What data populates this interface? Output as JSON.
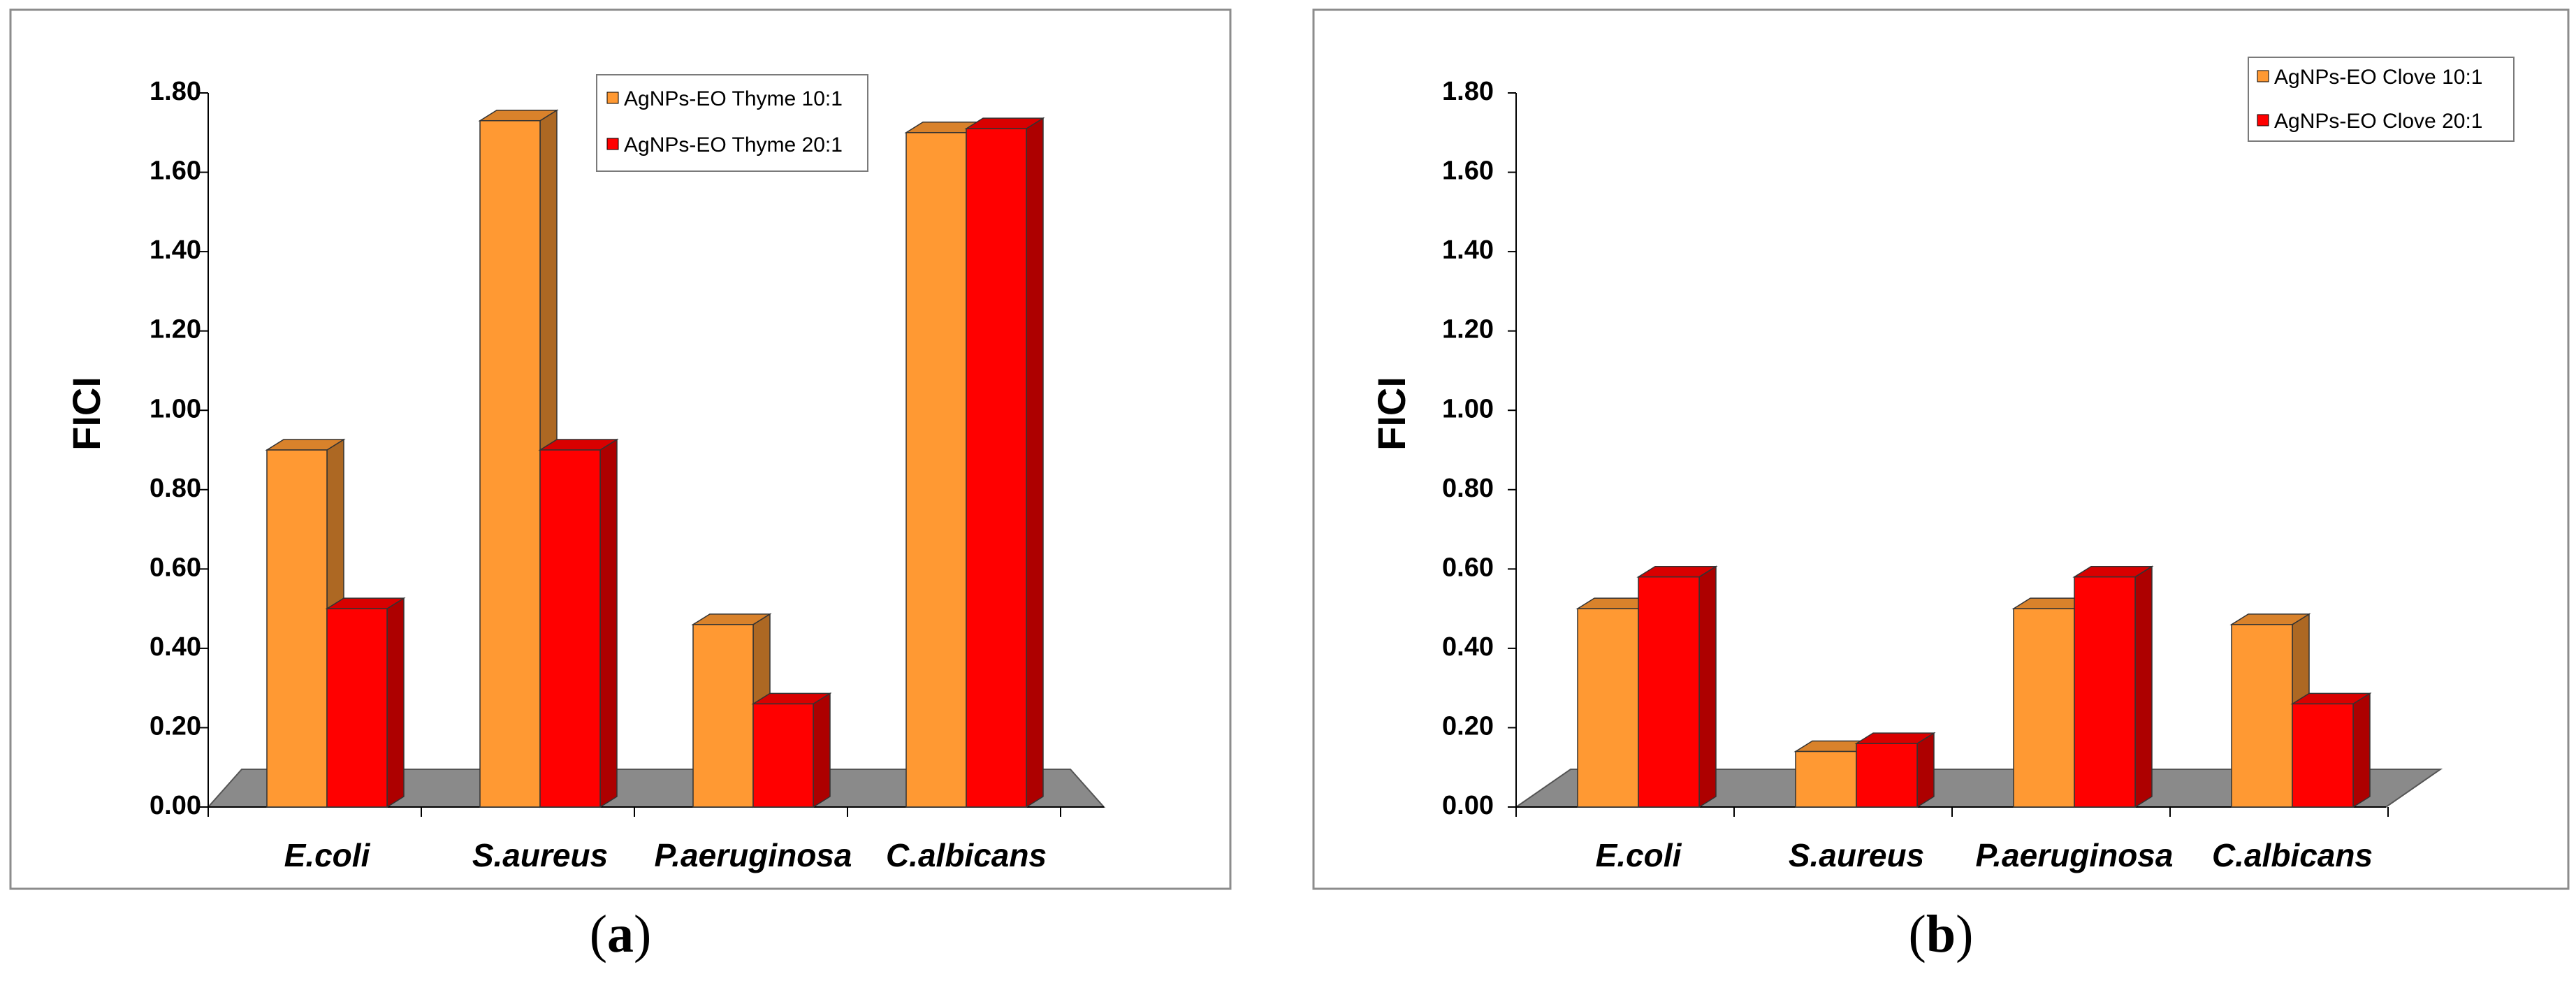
{
  "chart_data": [
    {
      "type": "bar",
      "panel": "a",
      "caption_letter": "a",
      "ylabel": "FICI",
      "ylim": [
        0,
        1.8
      ],
      "yticks": [
        "0.00",
        "0.20",
        "0.40",
        "0.60",
        "0.80",
        "1.00",
        "1.20",
        "1.40",
        "1.60",
        "1.80"
      ],
      "categories": [
        "E.coli",
        "S.aureus",
        "P.aeruginosa",
        "C.albicans"
      ],
      "series": [
        {
          "name": "AgNPs-EO Thyme 10:1",
          "color": "#FF9933",
          "values": [
            0.9,
            1.73,
            0.46,
            1.7
          ]
        },
        {
          "name": "AgNPs-EO Thyme 20:1",
          "color": "#FF0000",
          "values": [
            0.5,
            0.9,
            0.26,
            1.71
          ]
        }
      ],
      "legend_position": "top-right"
    },
    {
      "type": "bar",
      "panel": "b",
      "caption_letter": "b",
      "ylabel": "FICI",
      "ylim": [
        0,
        1.8
      ],
      "yticks": [
        "0.00",
        "0.20",
        "0.40",
        "0.60",
        "0.80",
        "1.00",
        "1.20",
        "1.40",
        "1.60",
        "1.80"
      ],
      "categories": [
        "E.coli",
        "S.aureus",
        "P.aeruginosa",
        "C.albicans"
      ],
      "series": [
        {
          "name": "AgNPs-EO Clove 10:1",
          "color": "#FF9933",
          "values": [
            0.5,
            0.14,
            0.5,
            0.46
          ]
        },
        {
          "name": "AgNPs-EO Clove 20:1",
          "color": "#FF0000",
          "values": [
            0.58,
            0.16,
            0.58,
            0.26
          ]
        }
      ],
      "legend_position": "top-right"
    }
  ]
}
